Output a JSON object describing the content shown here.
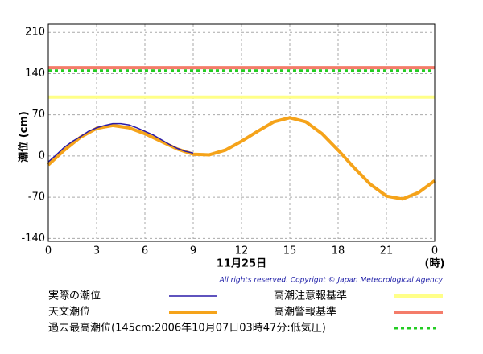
{
  "chart_data": {
    "type": "line",
    "y_label": "潮位 (cm)",
    "x_label": "11月25日",
    "x_unit": "(時)",
    "copyright": "All rights reserved. Copyright © Japan Meteorological Agency",
    "xlim": [
      0,
      24
    ],
    "xticks": [
      0,
      3,
      6,
      9,
      12,
      15,
      18,
      21,
      {
        "value": 24,
        "label": "0"
      }
    ],
    "ylim": [
      -145,
      224
    ],
    "yticks": [
      -140,
      -70,
      0,
      70,
      140,
      210
    ],
    "grid": true,
    "series": [
      {
        "name": "実際の潮位",
        "color": "#2a1aa8",
        "x": [
          0,
          0.5,
          1,
          1.5,
          2,
          2.5,
          3,
          3.5,
          4,
          4.5,
          5,
          5.5,
          6,
          6.5,
          7,
          7.5,
          8,
          8.5,
          9
        ],
        "values": [
          -10,
          2,
          15,
          25,
          33,
          42,
          48,
          52,
          55,
          55,
          53,
          48,
          42,
          36,
          28,
          20,
          13,
          8,
          5
        ]
      },
      {
        "name": "天文潮位",
        "color": "#f5a31a",
        "x": [
          0,
          1,
          2,
          3,
          4,
          5,
          6,
          7,
          8,
          9,
          10,
          11,
          12,
          13,
          14,
          15,
          16,
          17,
          18,
          19,
          20,
          21,
          22,
          23,
          24
        ],
        "values": [
          -15,
          10,
          32,
          47,
          52,
          48,
          38,
          25,
          12,
          3,
          2,
          10,
          25,
          42,
          58,
          65,
          58,
          38,
          10,
          -20,
          -48,
          -68,
          -73,
          -62,
          -42
        ]
      }
    ],
    "reference_lines": [
      {
        "name": "高潮注意報基準",
        "value": 100,
        "color": "#ffff88",
        "linestyle": "solid"
      },
      {
        "name": "高潮警報基準",
        "value": 150,
        "color": "#f47c6a",
        "linestyle": "solid"
      },
      {
        "name": "過去最高潮位(145cm:2006年10月07日03時47分:低気圧)",
        "value": 145,
        "color": "#22cc22",
        "linestyle": "dotted"
      }
    ]
  }
}
